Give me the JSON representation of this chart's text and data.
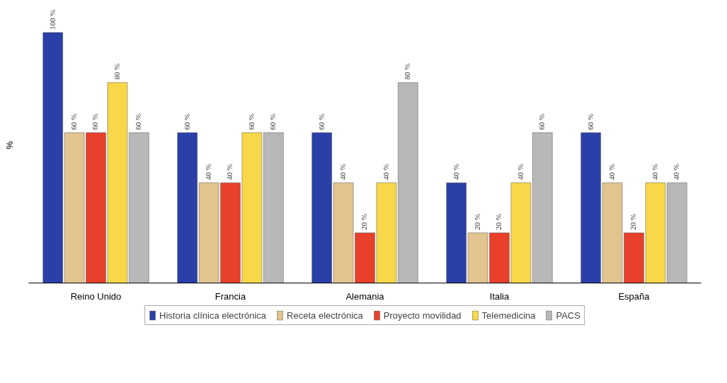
{
  "chart_data": {
    "type": "bar",
    "ylabel": "%",
    "categories": [
      "Reino Unido",
      "Francia",
      "Alemania",
      "Italia",
      "España"
    ],
    "series": [
      {
        "name": "Historia clínica electrónica",
        "color": "#2b3fa8",
        "values": [
          100,
          60,
          60,
          40,
          60
        ],
        "value_labels": [
          "100 %",
          "60 %",
          "60 %",
          "40 %",
          "60 %"
        ]
      },
      {
        "name": "Receta electrónica",
        "color": "#e2c48e",
        "values": [
          60,
          40,
          40,
          20,
          40
        ],
        "value_labels": [
          "60 %",
          "40 %",
          "40 %",
          "20 %",
          "40 %"
        ]
      },
      {
        "name": "Proyecto movilidad",
        "color": "#e8402a",
        "values": [
          60,
          40,
          20,
          20,
          20
        ],
        "value_labels": [
          "60 %",
          "40 %",
          "20 %",
          "20 %",
          "20 %"
        ]
      },
      {
        "name": "Telemedicina",
        "color": "#f8d848",
        "values": [
          80,
          60,
          40,
          40,
          40
        ],
        "value_labels": [
          "80 %",
          "60 %",
          "40 %",
          "40 %",
          "40 %"
        ]
      },
      {
        "name": "PACS",
        "color": "#b8b8b8",
        "values": [
          60,
          60,
          80,
          60,
          40
        ],
        "value_labels": [
          "60 %",
          "60 %",
          "80 %",
          "60 %",
          "40 %"
        ]
      }
    ],
    "tick_labels": "x",
    "legend": "bottom"
  }
}
